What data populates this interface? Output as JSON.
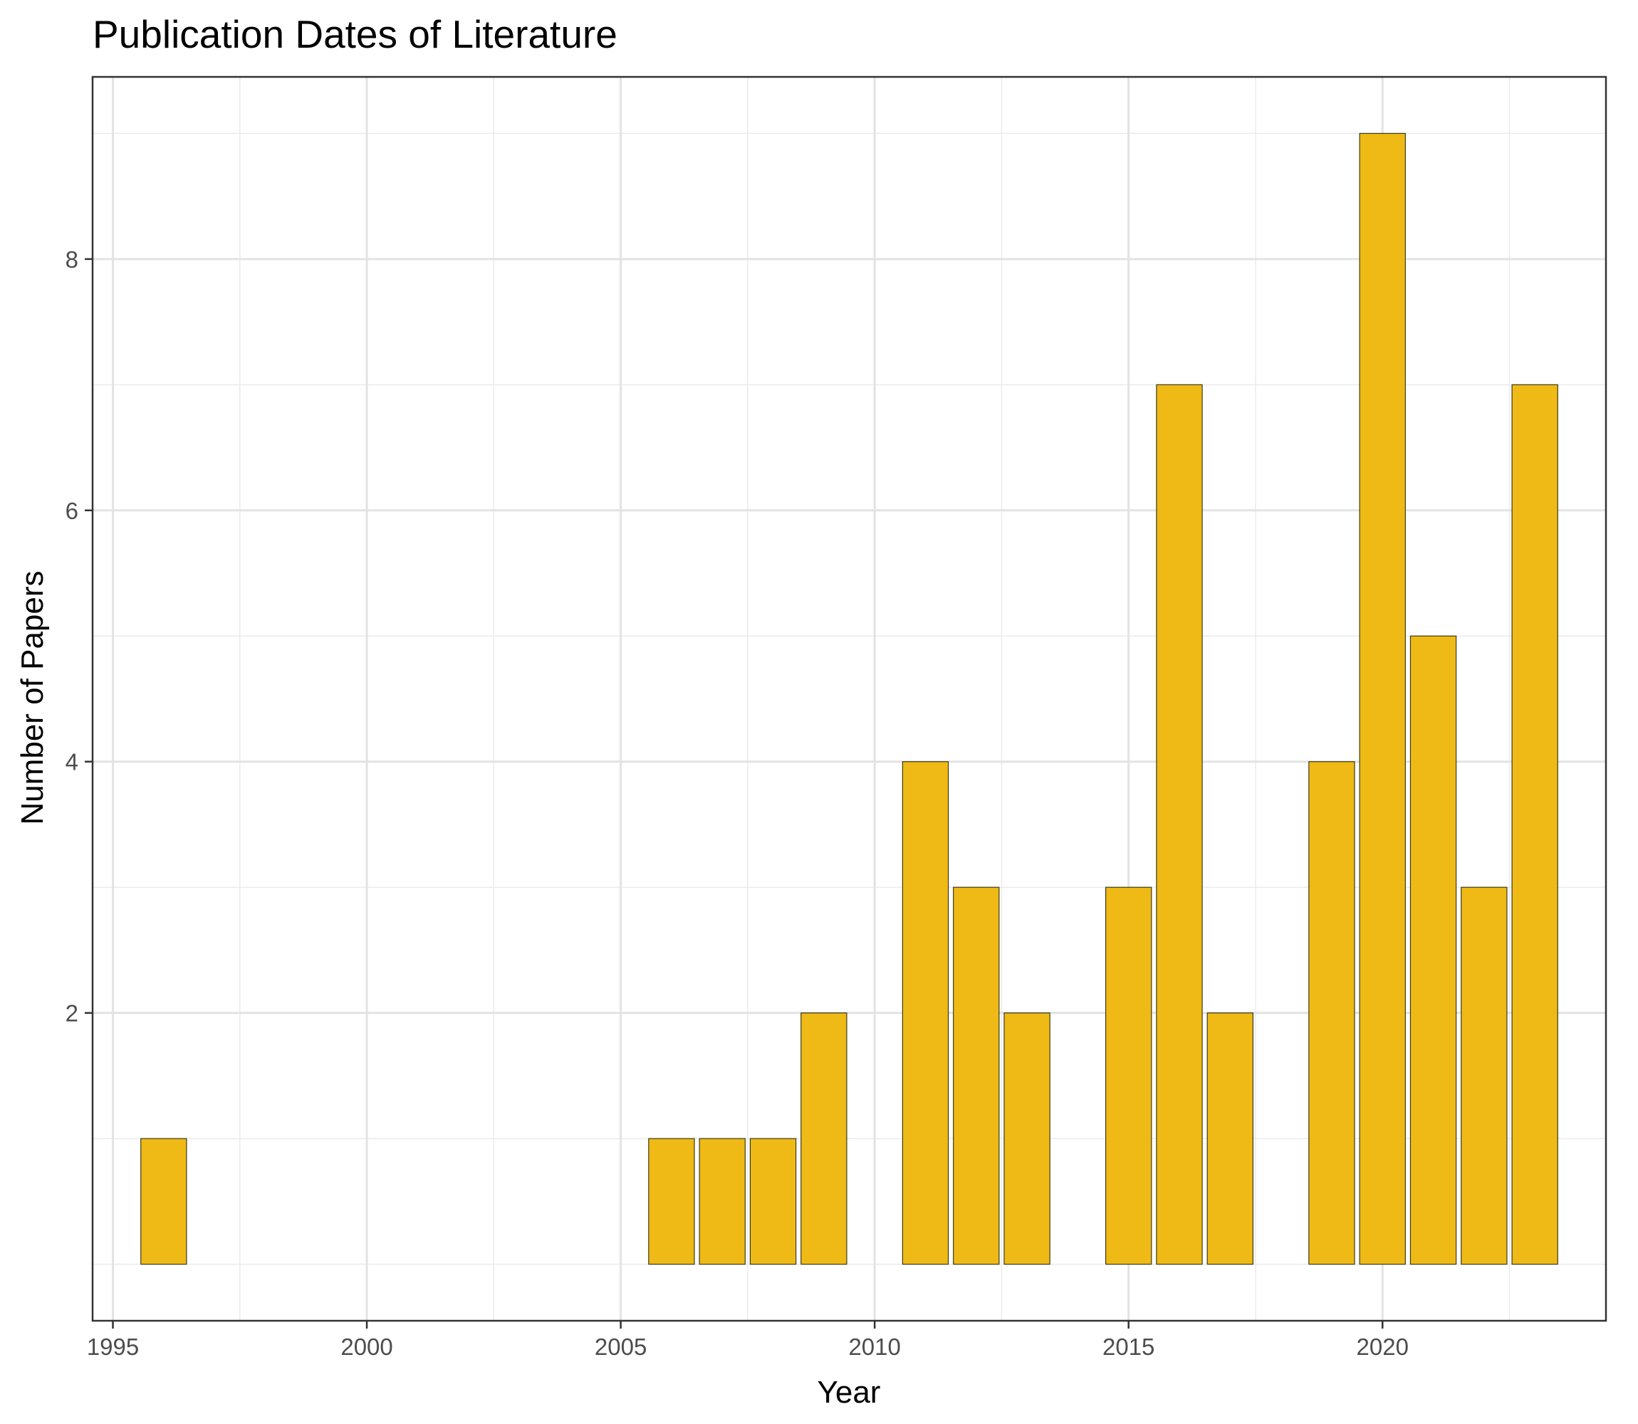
{
  "chart_data": {
    "type": "bar",
    "title": "Publication Dates of Literature",
    "xlabel": "Year",
    "ylabel": "Number of Papers",
    "x": [
      1996,
      2006,
      2007,
      2008,
      2009,
      2011,
      2012,
      2013,
      2015,
      2016,
      2017,
      2019,
      2020,
      2021,
      2022,
      2023
    ],
    "values": [
      1,
      1,
      1,
      1,
      2,
      4,
      3,
      2,
      3,
      7,
      2,
      4,
      9,
      5,
      3,
      7
    ],
    "xlim": [
      1994.6,
      2024.4
    ],
    "ylim": [
      -0.45,
      9.45
    ],
    "bar_baseline": 0,
    "xticks": [
      1995,
      2000,
      2005,
      2010,
      2015,
      2020
    ],
    "xtick_labels": [
      "1995",
      "2000",
      "2005",
      "2010",
      "2015",
      "2020"
    ],
    "yticks": [
      2,
      4,
      6,
      8
    ],
    "ytick_labels": [
      "2",
      "4",
      "6",
      "8"
    ],
    "grid": true,
    "legend": "none",
    "bar_color": "#EFBA15",
    "bar_edge_color": "#3a3a1a"
  }
}
